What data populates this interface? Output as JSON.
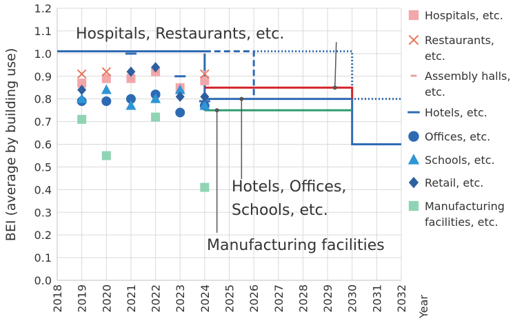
{
  "chart_data": {
    "type": "scatter",
    "xlabel": "Year",
    "ylabel": "BEI (average by building use)",
    "xlim": [
      2018,
      2032
    ],
    "ylim": [
      0.0,
      1.2
    ],
    "grid": true,
    "x_ticks": [
      "2018",
      "2019",
      "2020",
      "2021",
      "2022",
      "2023",
      "2024",
      "2025",
      "2026",
      "2027",
      "2028",
      "2029",
      "2030",
      "2031",
      "2032"
    ],
    "y_ticks": [
      "0.0",
      "0.1",
      "0.2",
      "0.3",
      "0.4",
      "0.5",
      "0.6",
      "0.7",
      "0.8",
      "0.9",
      "1.0",
      "1.1",
      "1.2"
    ],
    "legend_position": "right",
    "series": [
      {
        "name": "Hospitals, etc.",
        "marker": "square",
        "color": "#f2a7ab",
        "points": [
          [
            2019,
            0.87
          ],
          [
            2020,
            0.89
          ],
          [
            2021,
            0.89
          ],
          [
            2022,
            0.92
          ],
          [
            2023,
            0.85
          ],
          [
            2024,
            0.88
          ]
        ]
      },
      {
        "name": "Restaurants, etc.",
        "marker": "x",
        "color": "#e8735a",
        "points": [
          [
            2019,
            0.91
          ],
          [
            2020,
            0.92
          ],
          [
            2024,
            0.91
          ]
        ]
      },
      {
        "name": "Assembly halls, etc.",
        "marker": "dash",
        "color": "#e8a0a0",
        "points": [
          [
            2021,
            0.89
          ],
          [
            2022,
            0.92
          ],
          [
            2023,
            0.84
          ],
          [
            2024,
            0.92
          ]
        ]
      },
      {
        "name": "Hotels, etc.",
        "marker": "hline",
        "color": "#2e6ab3",
        "points": [
          [
            2021,
            1.0
          ],
          [
            2023,
            0.9
          ],
          [
            2024,
            0.79
          ]
        ]
      },
      {
        "name": "Offices, etc.",
        "marker": "circle",
        "color": "#2e6ab3",
        "points": [
          [
            2019,
            0.79
          ],
          [
            2020,
            0.79
          ],
          [
            2021,
            0.8
          ],
          [
            2022,
            0.82
          ],
          [
            2023,
            0.74
          ],
          [
            2024,
            0.77
          ]
        ]
      },
      {
        "name": "Schools, etc.",
        "marker": "triangle",
        "color": "#2e96d6",
        "points": [
          [
            2019,
            0.8
          ],
          [
            2020,
            0.84
          ],
          [
            2021,
            0.77
          ],
          [
            2022,
            0.8
          ],
          [
            2023,
            0.84
          ],
          [
            2024,
            0.77
          ]
        ]
      },
      {
        "name": "Retail, etc.",
        "marker": "diamond",
        "color": "#2e5f9e",
        "points": [
          [
            2019,
            0.84
          ],
          [
            2021,
            0.92
          ],
          [
            2022,
            0.94
          ],
          [
            2023,
            0.81
          ],
          [
            2024,
            0.81
          ]
        ]
      },
      {
        "name": "Manufacturing facilities, etc.",
        "marker": "square",
        "color": "#8fd4b4",
        "points": [
          [
            2019,
            0.71
          ],
          [
            2020,
            0.55
          ],
          [
            2022,
            0.72
          ],
          [
            2024,
            0.41
          ]
        ]
      }
    ],
    "target_lines": [
      {
        "group": "Hospitals, Restaurants, etc.",
        "color": "#2e6ab3",
        "style": "solid",
        "points": [
          [
            2018,
            1.01
          ],
          [
            2024,
            1.01
          ]
        ]
      },
      {
        "group": "Hospitals, Restaurants, etc.",
        "color": "#2e6ab3",
        "style": "dashed",
        "points": [
          [
            2024,
            1.01
          ],
          [
            2026,
            1.01
          ],
          [
            2026,
            0.8
          ]
        ]
      },
      {
        "group": "Hospitals, Restaurants, etc.",
        "color": "#2e6ab3",
        "style": "dotted",
        "points": [
          [
            2026,
            1.01
          ],
          [
            2030,
            1.01
          ],
          [
            2030,
            0.8
          ],
          [
            2032,
            0.8
          ]
        ]
      },
      {
        "group": "Hotels, Offices, Schools, etc.",
        "color": "#2e6ab3",
        "style": "solid",
        "points": [
          [
            2024,
            0.8
          ],
          [
            2030,
            0.8
          ],
          [
            2030,
            0.6
          ],
          [
            2032,
            0.6
          ]
        ]
      },
      {
        "group": "Hotels, Offices, Schools, etc.",
        "color": "#2e6ab3",
        "style": "solid",
        "points": [
          [
            2024,
            1.0
          ],
          [
            2024,
            0.75
          ]
        ]
      },
      {
        "group": "Retail",
        "color": "#d2232a",
        "style": "solid",
        "points": [
          [
            2024,
            0.85
          ],
          [
            2030,
            0.85
          ],
          [
            2030,
            0.8
          ]
        ]
      },
      {
        "group": "Manufacturing facilities",
        "color": "#2e9a6e",
        "style": "solid",
        "points": [
          [
            2024,
            0.75
          ],
          [
            2030,
            0.75
          ]
        ]
      }
    ],
    "annotations": [
      {
        "text": "Hospitals, Restaurants, etc.",
        "pointer": null
      },
      {
        "text": "Hotels, Offices,",
        "pointer": [
          2025.5,
          0.8
        ]
      },
      {
        "text": "Schools, etc.",
        "pointer": null
      },
      {
        "text": "Manufacturing facilities",
        "pointer": [
          2024.5,
          0.75
        ]
      }
    ],
    "upper_pointer": [
      2029.3,
      0.85
    ]
  }
}
